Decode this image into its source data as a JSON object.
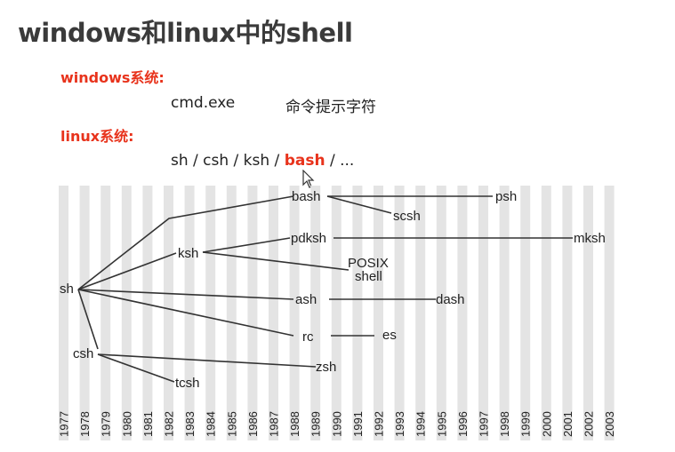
{
  "page_title": "windows和linux中的shell",
  "windows": {
    "label": "windows系统:",
    "program": "cmd.exe",
    "description": "命令提示字符"
  },
  "linux": {
    "label": "linux系统:",
    "shells_prefix": "sh / csh / ksh / ",
    "shells_highlight": "bash",
    "shells_suffix": " / ..."
  },
  "diagram": {
    "nodes": [
      "bash",
      "psh",
      "scsh",
      "ksh",
      "pdksh",
      "mksh",
      "POSIX",
      "shell",
      "sh",
      "ash",
      "dash",
      "rc",
      "es",
      "csh",
      "zsh",
      "tcsh"
    ],
    "years": [
      "1977",
      "1978",
      "1979",
      "1980",
      "1981",
      "1982",
      "1983",
      "1984",
      "1985",
      "1986",
      "1987",
      "1988",
      "1989",
      "1990",
      "1991",
      "1992",
      "1993",
      "1994",
      "1995",
      "1996",
      "1997",
      "1998",
      "1999",
      "2000",
      "2001",
      "2002",
      "2003"
    ]
  },
  "colors": {
    "accent_red": "#e8331c",
    "stripe": "#e4e4e4",
    "line": "#333333"
  }
}
